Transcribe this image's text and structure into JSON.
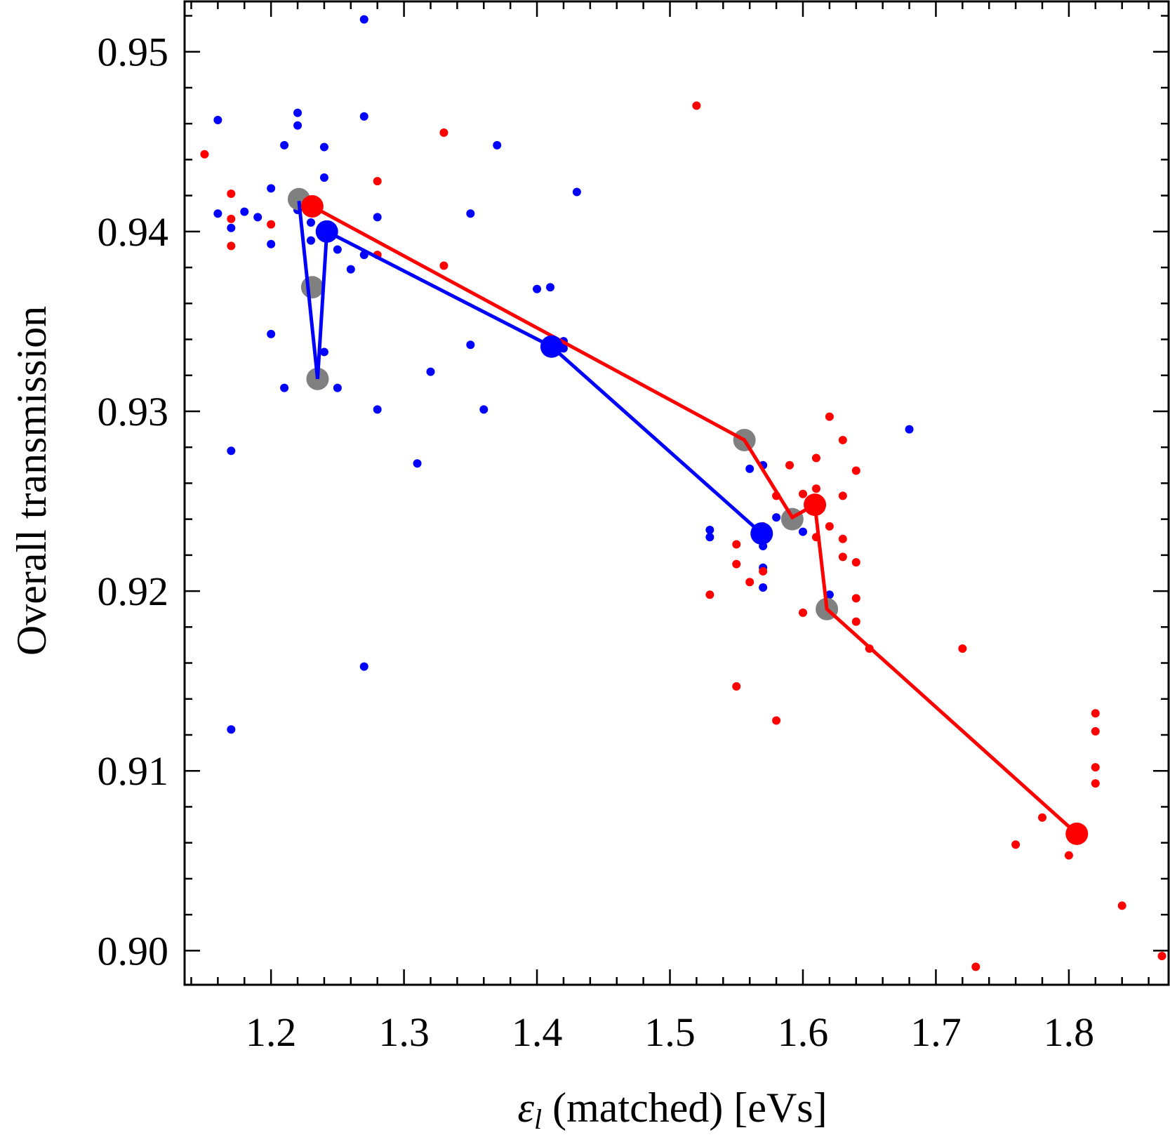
{
  "chart_data": {
    "type": "scatter",
    "xlabel": {
      "symbol": "ε",
      "subscript": "l",
      "text": " (matched) [eVs]"
    },
    "ylabel": "Overall transmission",
    "xlim": [
      1.135,
      1.875
    ],
    "ylim": [
      0.8981,
      0.9528
    ],
    "x_ticks": [
      1.2,
      1.3,
      1.4,
      1.5,
      1.6,
      1.7,
      1.8
    ],
    "x_tick_labels": [
      "1.2",
      "1.3",
      "1.4",
      "1.5",
      "1.6",
      "1.7",
      "1.8"
    ],
    "y_ticks": [
      0.9,
      0.91,
      0.92,
      0.93,
      0.94,
      0.95
    ],
    "y_tick_labels": [
      "0.90",
      "0.91",
      "0.92",
      "0.93",
      "0.94",
      "0.95"
    ],
    "grid": false,
    "colors": {
      "blue": "#0000ff",
      "red": "#ff0000",
      "gray": "#808080"
    },
    "series": [
      {
        "color": "#0000ff",
        "marker": "small-dot",
        "points": [
          [
            1.27,
            0.9518
          ],
          [
            1.16,
            0.9462
          ],
          [
            1.22,
            0.9466
          ],
          [
            1.22,
            0.9459
          ],
          [
            1.27,
            0.9464
          ],
          [
            1.21,
            0.9448
          ],
          [
            1.24,
            0.9447
          ],
          [
            1.37,
            0.9448
          ],
          [
            1.24,
            0.943
          ],
          [
            1.2,
            0.9424
          ],
          [
            1.43,
            0.9422
          ],
          [
            1.16,
            0.941
          ],
          [
            1.18,
            0.9411
          ],
          [
            1.19,
            0.9408
          ],
          [
            1.22,
            0.9412
          ],
          [
            1.35,
            0.941
          ],
          [
            1.28,
            0.9408
          ],
          [
            1.17,
            0.9402
          ],
          [
            1.23,
            0.9405
          ],
          [
            1.2,
            0.9393
          ],
          [
            1.23,
            0.9395
          ],
          [
            1.25,
            0.939
          ],
          [
            1.27,
            0.9387
          ],
          [
            1.26,
            0.9379
          ],
          [
            1.4,
            0.9368
          ],
          [
            1.41,
            0.9369
          ],
          [
            1.2,
            0.9343
          ],
          [
            1.42,
            0.9339
          ],
          [
            1.42,
            0.9335
          ],
          [
            1.35,
            0.9337
          ],
          [
            1.24,
            0.9333
          ],
          [
            1.32,
            0.9322
          ],
          [
            1.21,
            0.9313
          ],
          [
            1.25,
            0.9313
          ],
          [
            1.28,
            0.9301
          ],
          [
            1.36,
            0.9301
          ],
          [
            1.17,
            0.9278
          ],
          [
            1.31,
            0.9271
          ],
          [
            1.68,
            0.929
          ],
          [
            1.56,
            0.9268
          ],
          [
            1.57,
            0.927
          ],
          [
            1.53,
            0.9234
          ],
          [
            1.53,
            0.923
          ],
          [
            1.58,
            0.9241
          ],
          [
            1.6,
            0.9233
          ],
          [
            1.57,
            0.9225
          ],
          [
            1.57,
            0.9213
          ],
          [
            1.57,
            0.9202
          ],
          [
            1.62,
            0.9198
          ],
          [
            1.27,
            0.9158
          ],
          [
            1.17,
            0.9123
          ]
        ]
      },
      {
        "color": "#ff0000",
        "marker": "small-dot",
        "points": [
          [
            1.52,
            0.947
          ],
          [
            1.15,
            0.9443
          ],
          [
            1.33,
            0.9455
          ],
          [
            1.28,
            0.9428
          ],
          [
            1.17,
            0.9421
          ],
          [
            1.17,
            0.9407
          ],
          [
            1.2,
            0.9404
          ],
          [
            1.17,
            0.9392
          ],
          [
            1.28,
            0.9387
          ],
          [
            1.33,
            0.9381
          ],
          [
            1.62,
            0.9297
          ],
          [
            1.63,
            0.9284
          ],
          [
            1.59,
            0.927
          ],
          [
            1.61,
            0.9274
          ],
          [
            1.64,
            0.9267
          ],
          [
            1.61,
            0.9257
          ],
          [
            1.58,
            0.9253
          ],
          [
            1.6,
            0.9254
          ],
          [
            1.63,
            0.9253
          ],
          [
            1.62,
            0.9236
          ],
          [
            1.57,
            0.9236
          ],
          [
            1.61,
            0.923
          ],
          [
            1.63,
            0.9229
          ],
          [
            1.55,
            0.9226
          ],
          [
            1.63,
            0.9219
          ],
          [
            1.64,
            0.9216
          ],
          [
            1.55,
            0.9215
          ],
          [
            1.57,
            0.9211
          ],
          [
            1.56,
            0.9205
          ],
          [
            1.53,
            0.9198
          ],
          [
            1.64,
            0.9196
          ],
          [
            1.6,
            0.9188
          ],
          [
            1.64,
            0.9183
          ],
          [
            1.65,
            0.9168
          ],
          [
            1.72,
            0.9168
          ],
          [
            1.55,
            0.9147
          ],
          [
            1.58,
            0.9128
          ],
          [
            1.82,
            0.9132
          ],
          [
            1.82,
            0.9122
          ],
          [
            1.82,
            0.9102
          ],
          [
            1.82,
            0.9093
          ],
          [
            1.78,
            0.9074
          ],
          [
            1.76,
            0.9059
          ],
          [
            1.8,
            0.9053
          ],
          [
            1.84,
            0.9025
          ],
          [
            1.87,
            0.8997
          ],
          [
            1.73,
            0.8991
          ]
        ]
      }
    ],
    "lines": [
      {
        "color": "#0000ff",
        "points": [
          [
            1.221,
            0.9417
          ],
          [
            1.235,
            0.9318
          ],
          [
            1.242,
            0.94
          ],
          [
            1.411,
            0.9336
          ],
          [
            1.569,
            0.9232
          ]
        ],
        "vertex_color": "#0000ff",
        "gray_at": [
          0,
          1
        ]
      },
      {
        "color": "#ff0000",
        "points": [
          [
            1.231,
            0.9414
          ],
          [
            1.556,
            0.9284
          ],
          [
            1.592,
            0.9241
          ],
          [
            1.609,
            0.9248
          ],
          [
            1.618,
            0.919
          ],
          [
            1.806,
            0.9065
          ]
        ],
        "vertex_color": "#ff0000",
        "gray_at": [
          1,
          2,
          4
        ]
      }
    ],
    "gray_markers": [
      [
        1.221,
        0.9418
      ],
      [
        1.231,
        0.9369
      ],
      [
        1.235,
        0.9318
      ],
      [
        1.556,
        0.9284
      ],
      [
        1.592,
        0.924
      ],
      [
        1.618,
        0.919
      ]
    ],
    "blue_markers": [
      [
        1.242,
        0.94
      ],
      [
        1.411,
        0.9336
      ],
      [
        1.569,
        0.9232
      ]
    ],
    "red_markers": [
      [
        1.231,
        0.9414
      ],
      [
        1.609,
        0.9248
      ],
      [
        1.806,
        0.9065
      ]
    ]
  }
}
